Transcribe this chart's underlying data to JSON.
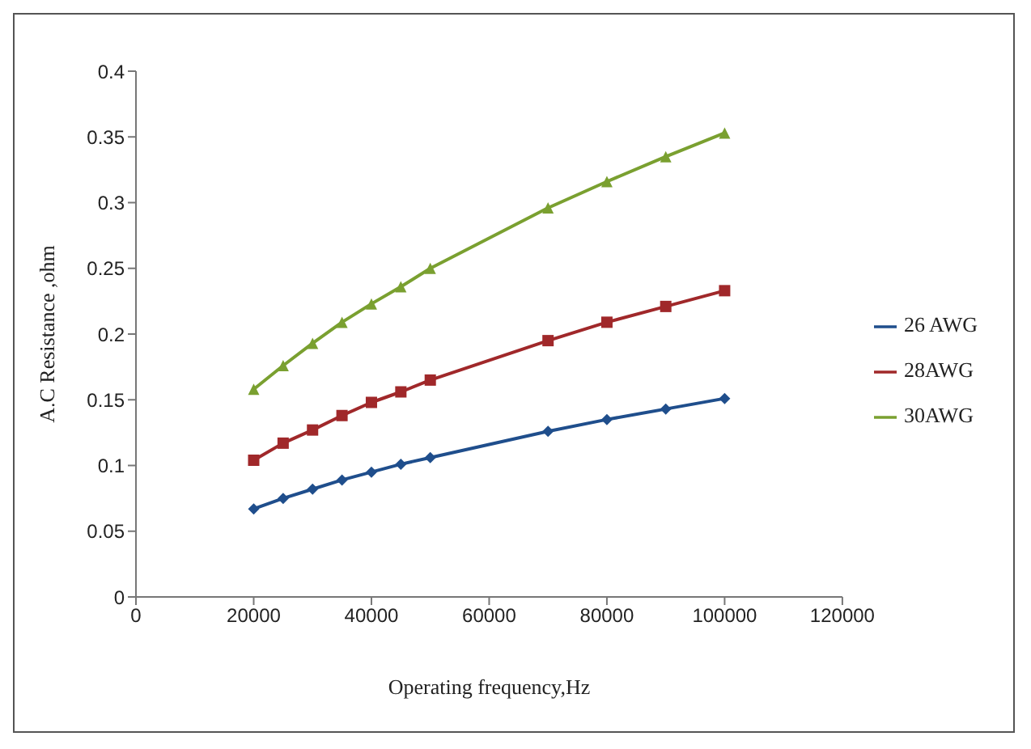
{
  "chart_data": {
    "type": "line",
    "xlabel": "Operating frequency,Hz",
    "ylabel": "A.C Resistance ,ohm",
    "x": [
      20000,
      25000,
      30000,
      35000,
      40000,
      45000,
      50000,
      70000,
      80000,
      90000,
      100000
    ],
    "series": [
      {
        "name": "26 AWG",
        "color": "#1f4e8c",
        "marker": "diamond",
        "values": [
          0.067,
          0.075,
          0.082,
          0.089,
          0.095,
          0.101,
          0.106,
          0.126,
          0.135,
          0.143,
          0.151
        ]
      },
      {
        "name": "28AWG",
        "color": "#a0282a",
        "marker": "square",
        "values": [
          0.104,
          0.117,
          0.127,
          0.138,
          0.148,
          0.156,
          0.165,
          0.195,
          0.209,
          0.221,
          0.233
        ]
      },
      {
        "name": "30AWG",
        "color": "#7aa030",
        "marker": "triangle",
        "values": [
          0.158,
          0.176,
          0.193,
          0.209,
          0.223,
          0.236,
          0.25,
          0.296,
          0.316,
          0.335,
          0.353
        ]
      }
    ],
    "xlim": [
      0,
      120000
    ],
    "xticks": [
      0,
      20000,
      40000,
      60000,
      80000,
      100000,
      120000
    ],
    "ylim": [
      0,
      0.4
    ],
    "yticks": [
      0,
      0.05,
      0.1,
      0.15,
      0.2,
      0.25,
      0.3,
      0.35,
      0.4
    ],
    "grid": false,
    "legend": "right",
    "line_style": "solid"
  }
}
